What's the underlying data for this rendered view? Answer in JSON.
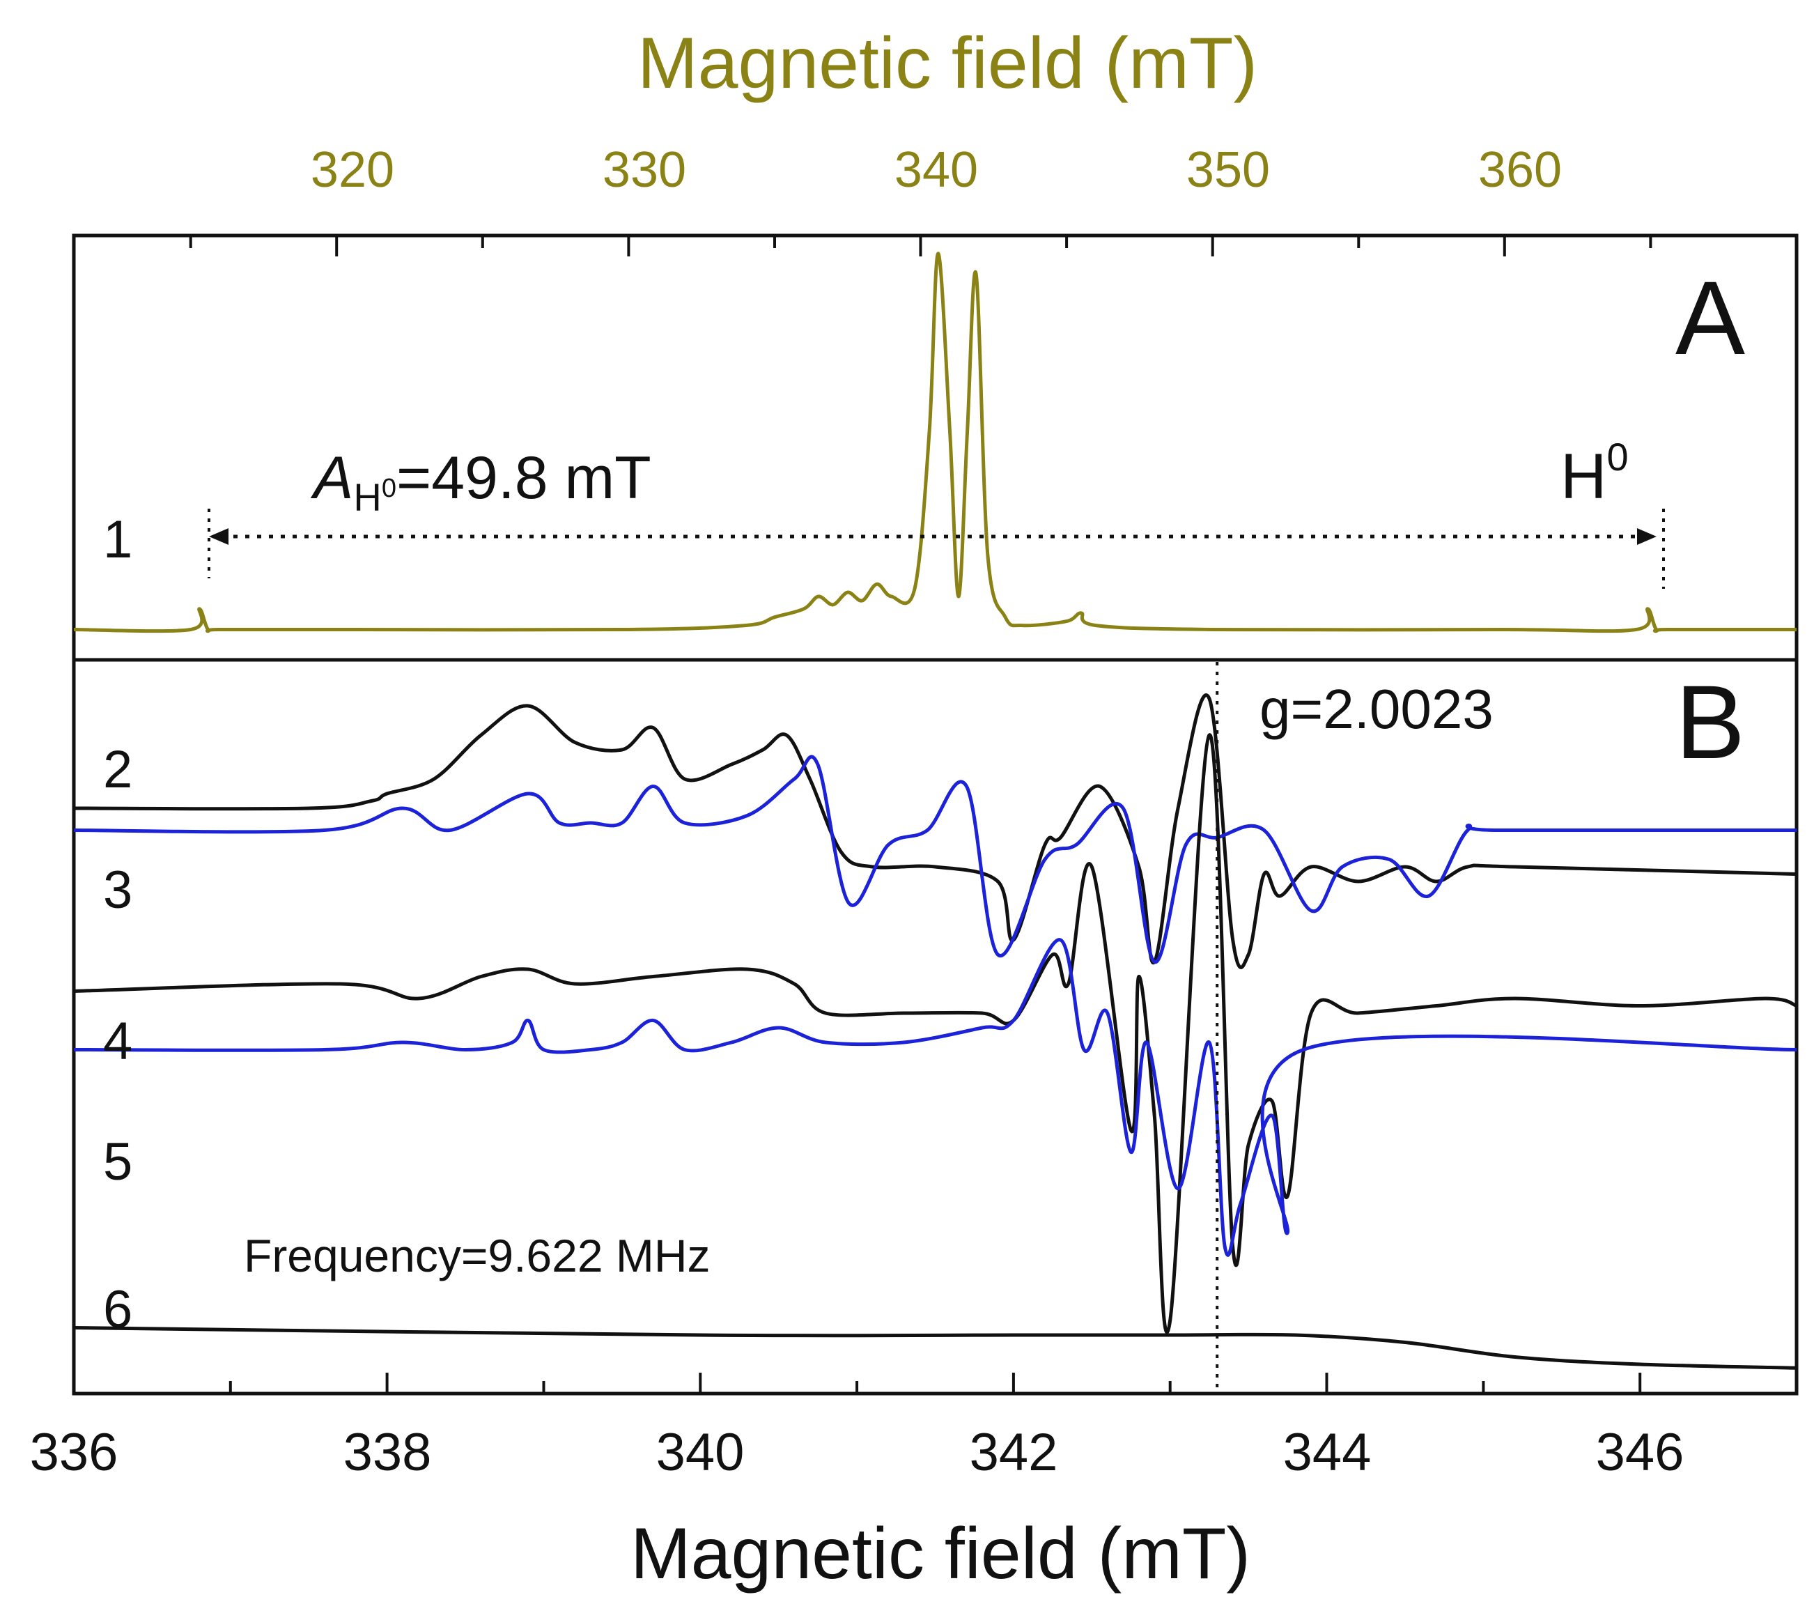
{
  "colors": {
    "olive": "#8a8214",
    "black": "#111111",
    "blue": "#1c22d8"
  },
  "chart_data": [
    {
      "panel": "A",
      "type": "line",
      "xlabel": "Magnetic field (mT)",
      "xlim": [
        311,
        370
      ],
      "xticks": [
        320,
        330,
        340,
        350,
        360
      ],
      "ylim": [
        0,
        1
      ],
      "series": [
        {
          "name": "1",
          "color": "#8a8214",
          "x": [
            311,
            315,
            315.3,
            315.6,
            316,
            320,
            330,
            334,
            335,
            336,
            336.5,
            337,
            337.5,
            338,
            338.5,
            339,
            339.8,
            340.3,
            340.6,
            341.0,
            341.3,
            341.6,
            341.9,
            342.3,
            342.9,
            343.5,
            345,
            345.5,
            346,
            350,
            360,
            364.5,
            364.9,
            365.2,
            365.6,
            370
          ],
          "y": [
            0.07,
            0.07,
            0.12,
            0.07,
            0.07,
            0.07,
            0.07,
            0.08,
            0.1,
            0.12,
            0.15,
            0.13,
            0.16,
            0.14,
            0.18,
            0.15,
            0.17,
            0.55,
            0.98,
            0.55,
            0.15,
            0.55,
            0.93,
            0.25,
            0.1,
            0.08,
            0.09,
            0.11,
            0.08,
            0.07,
            0.07,
            0.07,
            0.12,
            0.07,
            0.07,
            0.07
          ]
        }
      ]
    },
    {
      "panel": "B",
      "type": "line",
      "xlabel": "Magnetic field (mT)",
      "xlim": [
        336,
        347
      ],
      "xticks": [
        336,
        338,
        340,
        342,
        344,
        346
      ],
      "ylim": [
        0,
        1
      ],
      "series": [
        {
          "name": "2",
          "color": "#111111",
          "x": [
            336,
            337.5,
            337.9,
            338.0,
            338.3,
            338.6,
            338.9,
            339.2,
            339.5,
            339.7,
            339.9,
            340.2,
            340.4,
            340.55,
            340.7,
            340.9,
            341.1,
            341.5,
            341.9,
            342.0,
            342.2,
            342.3,
            342.55,
            342.8,
            342.9,
            343.05,
            343.25,
            343.4,
            343.5,
            343.6,
            343.7,
            343.9,
            344.2,
            344.5,
            344.7,
            344.9,
            345.2,
            347
          ],
          "y": [
            0.8,
            0.8,
            0.81,
            0.82,
            0.84,
            0.9,
            0.94,
            0.89,
            0.88,
            0.91,
            0.84,
            0.86,
            0.88,
            0.9,
            0.84,
            0.74,
            0.72,
            0.72,
            0.7,
            0.62,
            0.75,
            0.76,
            0.83,
            0.72,
            0.59,
            0.8,
            0.95,
            0.62,
            0.6,
            0.71,
            0.68,
            0.72,
            0.7,
            0.72,
            0.7,
            0.72,
            0.72,
            0.71
          ]
        },
        {
          "name": "3",
          "color": "#1c22d8",
          "x": [
            336,
            337.6,
            338.1,
            338.4,
            338.9,
            339.1,
            339.3,
            339.5,
            339.7,
            339.9,
            340.3,
            340.6,
            340.75,
            340.95,
            341.2,
            341.45,
            341.7,
            341.9,
            342.2,
            342.4,
            342.7,
            342.9,
            343.1,
            343.3,
            343.6,
            343.9,
            344.1,
            344.4,
            344.65,
            344.9,
            345.1,
            347
          ],
          "y": [
            0.77,
            0.77,
            0.8,
            0.77,
            0.82,
            0.78,
            0.78,
            0.78,
            0.83,
            0.78,
            0.79,
            0.84,
            0.86,
            0.67,
            0.75,
            0.77,
            0.83,
            0.6,
            0.73,
            0.75,
            0.8,
            0.59,
            0.75,
            0.76,
            0.77,
            0.66,
            0.72,
            0.73,
            0.68,
            0.77,
            0.77,
            0.77
          ]
        },
        {
          "name": "4",
          "color": "#111111",
          "x": [
            336,
            337.7,
            338.2,
            338.6,
            338.9,
            339.2,
            339.7,
            340.3,
            340.6,
            340.8,
            341.3,
            341.8,
            342.0,
            342.25,
            342.35,
            342.5,
            342.75,
            342.8,
            342.9,
            343.0,
            343.25,
            343.4,
            343.5,
            343.65,
            343.75,
            343.9,
            344.2,
            344.7,
            345.2,
            346,
            346.8,
            347
          ],
          "y": [
            0.55,
            0.56,
            0.54,
            0.57,
            0.58,
            0.56,
            0.57,
            0.58,
            0.56,
            0.52,
            0.52,
            0.52,
            0.51,
            0.6,
            0.56,
            0.72,
            0.36,
            0.57,
            0.38,
            0.1,
            0.9,
            0.2,
            0.34,
            0.4,
            0.27,
            0.52,
            0.52,
            0.53,
            0.54,
            0.53,
            0.54,
            0.53
          ]
        },
        {
          "name": "5",
          "color": "#1c22d8",
          "x": [
            336,
            337.6,
            338.1,
            338.5,
            338.8,
            338.9,
            339.0,
            339.3,
            339.5,
            339.7,
            339.9,
            340.2,
            340.5,
            340.8,
            341.3,
            341.8,
            342.0,
            342.3,
            342.45,
            342.6,
            342.75,
            342.85,
            343.05,
            343.25,
            343.35,
            343.45,
            343.65,
            343.75,
            343.85,
            347
          ],
          "y": [
            0.47,
            0.47,
            0.48,
            0.47,
            0.48,
            0.51,
            0.47,
            0.47,
            0.48,
            0.51,
            0.47,
            0.48,
            0.5,
            0.48,
            0.48,
            0.5,
            0.51,
            0.62,
            0.47,
            0.52,
            0.33,
            0.48,
            0.28,
            0.48,
            0.2,
            0.26,
            0.38,
            0.22,
            0.47,
            0.47
          ]
        },
        {
          "name": "6",
          "color": "#111111",
          "x": [
            336,
            340,
            342,
            343,
            343.8,
            344.5,
            345.2,
            346,
            347
          ],
          "y": [
            0.09,
            0.08,
            0.08,
            0.08,
            0.08,
            0.07,
            0.05,
            0.04,
            0.035
          ]
        }
      ]
    }
  ],
  "figure": {
    "top_xlabel": "Magnetic field (mT)",
    "bottom_xlabel": "Magnetic field (mT)",
    "top_ticks": [
      "320",
      "330",
      "340",
      "350",
      "360"
    ],
    "bottom_ticks": [
      "336",
      "338",
      "340",
      "342",
      "344",
      "346"
    ],
    "panel_a_letter": "A",
    "panel_b_letter": "B",
    "label_1": "1",
    "label_2": "2",
    "label_3": "3",
    "label_4": "4",
    "label_5": "5",
    "label_6": "6",
    "a_italic": "A",
    "a_sub": "H",
    "a_sup": "0",
    "a_value": "=49.8 mT",
    "h0_base": "H",
    "h0_sup": "0",
    "g_label": "g=2.0023",
    "frequency_label": "Frequency=9.622 MHz",
    "g_marker_field_mT": 343.3
  }
}
